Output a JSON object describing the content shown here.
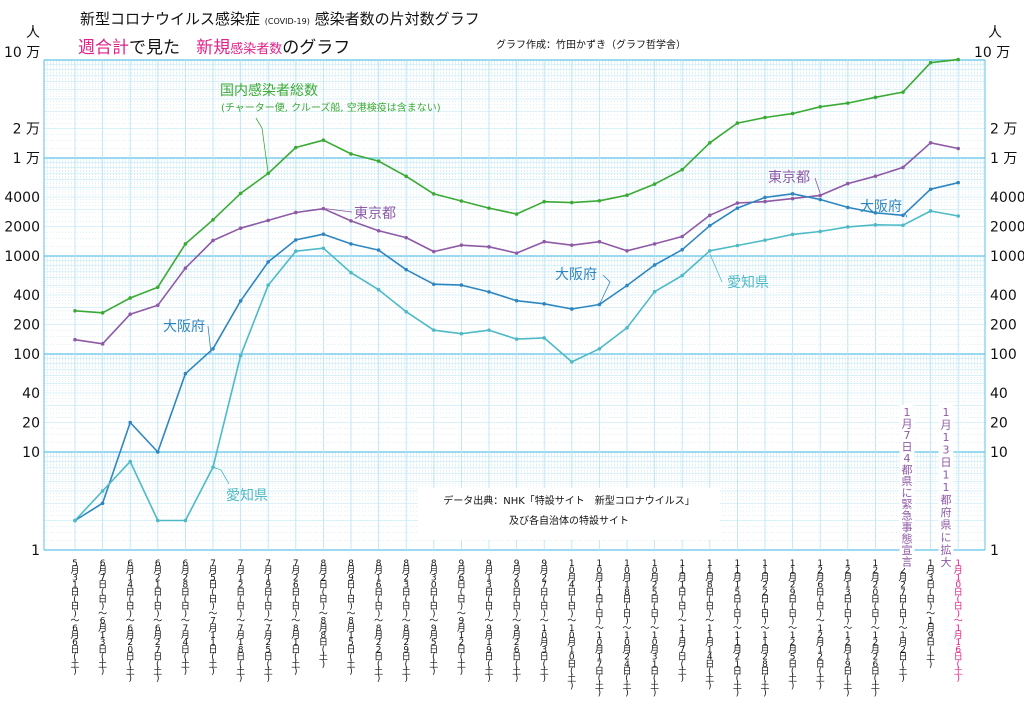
{
  "header": {
    "title_main": "新型コロナウイルス感染症",
    "title_small": "(COVID-19)",
    "title_rest": "感染者数の片対数グラフ",
    "subtitle_a": "週合計",
    "subtitle_b": "で見た",
    "subtitle_c": "新規",
    "subtitle_d": "感染者数",
    "subtitle_e": "のグラフ",
    "author": "グラフ作成：竹田かずき（グラフ哲学舎）"
  },
  "axis": {
    "unit_left": "人",
    "unit_right": "人",
    "top_left": "10 万",
    "top_right": "10 万"
  },
  "source": {
    "line1": "データ出典：NHK「特設サイト　新型コロナウイルス」",
    "line2": "及び各自治体の特設サイト"
  },
  "colors": {
    "grid_major": "#5fc3e8",
    "grid_minor": "#b7e3f5",
    "national": "#3aaa35",
    "tokyo": "#8e5aa6",
    "osaka": "#2e86c1",
    "aichi": "#4fbac6",
    "highlight": "#e0218a"
  },
  "chart_data": {
    "type": "line",
    "title": "新型コロナウイルス感染症(COVID-19)感染者数の片対数グラフ",
    "subtitle": "週合計で見た新規感染者数のグラフ",
    "yscale": "log",
    "ylim": [
      1,
      100000
    ],
    "yticks_left": [
      "2 万",
      "1 万",
      "4000",
      "2000",
      "1000",
      "400",
      "200",
      "100",
      "40",
      "20",
      "10",
      "1"
    ],
    "yticks_right": [
      "2 万",
      "1 万",
      "4000",
      "2000",
      "1000",
      "400",
      "200",
      "100",
      "40",
      "20",
      "10",
      "1"
    ],
    "ytick_values": [
      20000,
      10000,
      4000,
      2000,
      1000,
      400,
      200,
      100,
      40,
      20,
      10,
      1
    ],
    "categories": [
      "5月31日(日)〜6月6日(土)",
      "6月7日(日)〜6月13日(土)",
      "6月14日(日)〜6月20日(土)",
      "6月21日(日)〜6月27日(土)",
      "6月28日(日)〜7月4日(土)",
      "7月5日(日)〜7月11日(土)",
      "7月12日(日)〜7月18日(土)",
      "7月19日(日)〜7月25日(土)",
      "7月26日(日)〜8月1日(土)",
      "8月2日(日)〜8月8日(土)",
      "8月9日(日)〜8月15日(土)",
      "8月16日(日)〜8月22日(土)",
      "8月23日(日)〜8月29日(土)",
      "8月30日(日)〜9月5日(土)",
      "9月6日(日)〜9月12日(土)",
      "9月13日(日)〜9月19日(土)",
      "9月20日(日)〜9月26日(土)",
      "9月27日(日)〜10月3日(土)",
      "10月4日(日)〜10月10日(土)",
      "10月11日(日)〜10月17日(土)",
      "10月18日(日)〜10月24日(土)",
      "10月25日(日)〜10月31日(土)",
      "11月1日(日)〜11月7日(土)",
      "11月8日(日)〜11月14日(土)",
      "11月15日(日)〜11月21日(土)",
      "11月22日(日)〜11月28日(土)",
      "11月29日(日)〜12月5日(土)",
      "12月6日(日)〜12月12日(土)",
      "12月13日(日)〜12月19日(土)",
      "12月20日(日)〜12月26日(土)",
      "12月27日(日)〜1月2日(土)",
      "1月3日(日)〜1月9日(土)",
      "1月10日(日)〜1月16日(土)"
    ],
    "category_labels_vertical": [
      "5月31日(日)〜6月6日(土)",
      "6月7日(日)〜6月13日(土)",
      "6月14日(日)〜6月20日(土)",
      "6月21日(日)〜6月27日(土)",
      "6月28日(日)〜7月4日(土)",
      "7月5日(日)〜7月11日(土)",
      "7月12日(日)〜7月18日(土)",
      "7月19日(日)〜7月25日(土)",
      "7月26日(日)〜8月1日(土)",
      "8月2日(日)〜8月8日(土)",
      "8月9日(日)〜8月15日(土)",
      "8月16日(日)〜8月22日(土)",
      "8月23日(日)〜8月29日(土)",
      "8月30日(日)〜9月5日(土)",
      "9月6日(日)〜9月12日(土)",
      "9月13日(日)〜9月19日(土)",
      "9月20日(日)〜9月26日(土)",
      "9月27日(日)〜10月3日(土)",
      "10月4日(日)〜10月10日(土)",
      "10月11日(日)〜10月17日(土)",
      "10月18日(日)〜10月24日(土)",
      "10月25日(日)〜10月31日(土)",
      "11月1日(日)〜11月7日(土)",
      "11月8日(日)〜11月14日(土)",
      "11月15日(日)〜11月21日(土)",
      "11月22日(日)〜11月28日(土)",
      "11月29日(日)〜12月5日(土)",
      "12月6日(日)〜12月12日(土)",
      "12月13日(日)〜12月19日(土)",
      "12月20日(日)〜12月26日(土)",
      "12月27日(日)〜1月2日(土)",
      "1月3日(日)〜1月9日(土)",
      "1月10日(日)〜1月16日(土)"
    ],
    "series": [
      {
        "name": "国内感染者総数",
        "note": "(チャーター便, クルーズ船, 空港検疫は含まない)",
        "color": "#3aaa35",
        "values": [
          276,
          263,
          373,
          480,
          1330,
          2340,
          4350,
          6960,
          12800,
          15200,
          11000,
          9300,
          6500,
          4300,
          3640,
          3080,
          2680,
          3580,
          3510,
          3660,
          4170,
          5420,
          7600,
          14300,
          22700,
          25900,
          28400,
          33300,
          36300,
          41600,
          47000,
          93900,
          101000
        ]
      },
      {
        "name": "東京都",
        "color": "#8e5aa6",
        "values": [
          140,
          127,
          255,
          314,
          752,
          1440,
          1920,
          2310,
          2780,
          3040,
          2280,
          1810,
          1540,
          1110,
          1290,
          1240,
          1070,
          1400,
          1290,
          1400,
          1130,
          1330,
          1580,
          2600,
          3470,
          3590,
          3850,
          4150,
          5480,
          6520,
          8010,
          14300,
          12500
        ]
      },
      {
        "name": "大阪府",
        "color": "#2e86c1",
        "values": [
          2,
          3,
          20,
          10,
          63,
          113,
          348,
          870,
          1460,
          1670,
          1330,
          1150,
          725,
          515,
          505,
          430,
          350,
          325,
          288,
          320,
          500,
          810,
          1160,
          2040,
          3080,
          3960,
          4310,
          3770,
          3130,
          2760,
          2600,
          4800,
          5600
        ]
      },
      {
        "name": "愛知県",
        "color": "#4fbac6",
        "values": [
          2,
          4,
          8,
          2,
          2,
          7,
          96,
          504,
          1120,
          1200,
          675,
          453,
          270,
          175,
          161,
          175,
          142,
          146,
          83,
          113,
          185,
          432,
          632,
          1130,
          1280,
          1450,
          1660,
          1780,
          1980,
          2080,
          2060,
          2880,
          2560
        ]
      }
    ],
    "annotations": [
      {
        "text": "国内感染者総数",
        "series": "国内感染者総数"
      },
      {
        "text": "東京都",
        "series": "東京都"
      },
      {
        "text": "大阪府",
        "series": "大阪府"
      },
      {
        "text": "愛知県",
        "series": "愛知県"
      },
      {
        "text": "1月7日4都県に緊急事態宣言"
      },
      {
        "text": "1月13日11都府県に拡大"
      }
    ]
  }
}
